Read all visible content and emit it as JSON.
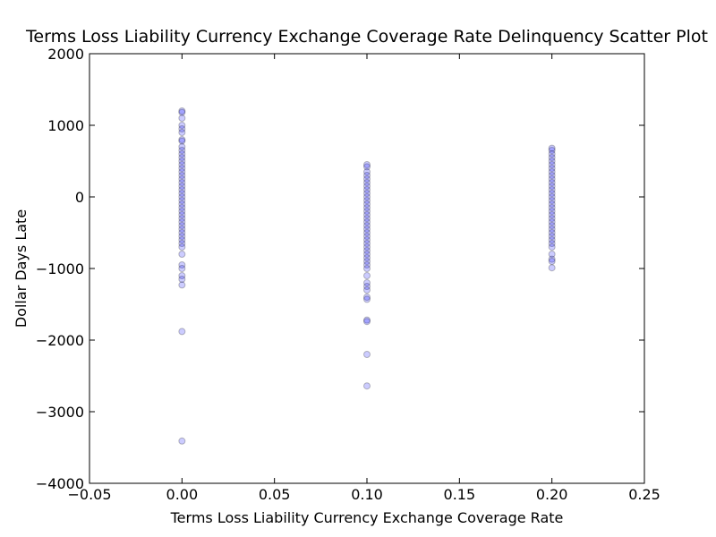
{
  "chart_data": {
    "type": "scatter",
    "title": "Terms Loss Liability Currency Exchange Coverage Rate Delinquency Scatter Plot",
    "x_label": "Terms Loss Liability Currency Exchange Coverage Rate",
    "y_label": "Dollar Days Late",
    "color": "#0000ff",
    "xlim": [
      -0.05,
      0.25
    ],
    "ylim": [
      -4000,
      2000
    ],
    "xticks": [
      {
        "value": -0.05,
        "label": "−0.05"
      },
      {
        "value": 0,
        "label": "0.00"
      },
      {
        "value": 0.05,
        "label": "0.05"
      },
      {
        "value": 0.1,
        "label": "0.10"
      },
      {
        "value": 0.15,
        "label": "0.15"
      },
      {
        "value": 0.2,
        "label": "0.20"
      },
      {
        "value": 0.25,
        "label": "0.25"
      }
    ],
    "yticks": [
      {
        "value": -4000,
        "label": "−4000"
      },
      {
        "value": -3000,
        "label": "−3000"
      },
      {
        "value": -2000,
        "label": "−2000"
      },
      {
        "value": -1000,
        "label": "−1000"
      },
      0,
      1000,
      2000
    ],
    "x": [
      0,
      0,
      0,
      0,
      0,
      0,
      0,
      0,
      0,
      0,
      0,
      0,
      0,
      0,
      0,
      0,
      0,
      0,
      0,
      0,
      0,
      0,
      0,
      0,
      0,
      0,
      0,
      0,
      0,
      0,
      0,
      0,
      0,
      0,
      0,
      0,
      0,
      0,
      0,
      0,
      0,
      0,
      0,
      0,
      0,
      0.1,
      0.1,
      0.1,
      0.1,
      0.1,
      0.1,
      0.1,
      0.1,
      0.1,
      0.1,
      0.1,
      0.1,
      0.1,
      0.1,
      0.1,
      0.1,
      0.1,
      0.1,
      0.1,
      0.1,
      0.1,
      0.1,
      0.1,
      0.1,
      0.1,
      0.1,
      0.1,
      0.1,
      0.1,
      0.1,
      0.1,
      0.1,
      0.1,
      0.1,
      0.1,
      0.1,
      0.1,
      0.1,
      0.1,
      0.1,
      0.2,
      0.2,
      0.2,
      0.2,
      0.2,
      0.2,
      0.2,
      0.2,
      0.2,
      0.2,
      0.2,
      0.2,
      0.2,
      0.2,
      0.2,
      0.2,
      0.2,
      0.2,
      0.2,
      0.2,
      0.2,
      0.2,
      0.2,
      0.2,
      0.2,
      0.2,
      0.2,
      0.2,
      0.2,
      0.2,
      0.2,
      0.2,
      0.2
    ],
    "values": [
      1200,
      1180,
      1100,
      1000,
      950,
      900,
      800,
      780,
      700,
      650,
      600,
      550,
      500,
      450,
      400,
      350,
      300,
      250,
      200,
      150,
      100,
      50,
      0,
      -50,
      -100,
      -150,
      -200,
      -250,
      -300,
      -350,
      -400,
      -450,
      -500,
      -550,
      -600,
      -650,
      -700,
      -800,
      -950,
      -1000,
      -1100,
      -1150,
      -1230,
      -1880,
      -3410,
      450,
      420,
      350,
      300,
      250,
      200,
      150,
      100,
      50,
      0,
      -50,
      -100,
      -150,
      -200,
      -250,
      -300,
      -350,
      -400,
      -450,
      -500,
      -550,
      -600,
      -650,
      -700,
      -750,
      -800,
      -850,
      -900,
      -950,
      -1000,
      -1100,
      -1200,
      -1250,
      -1300,
      -1400,
      -1430,
      -1720,
      -1740,
      -2200,
      -2640,
      680,
      650,
      600,
      550,
      500,
      450,
      400,
      350,
      300,
      250,
      200,
      150,
      100,
      50,
      0,
      -50,
      -100,
      -150,
      -200,
      -250,
      -300,
      -350,
      -400,
      -450,
      -500,
      -550,
      -600,
      -650,
      -700,
      -800,
      -870,
      -900,
      -990
    ]
  }
}
